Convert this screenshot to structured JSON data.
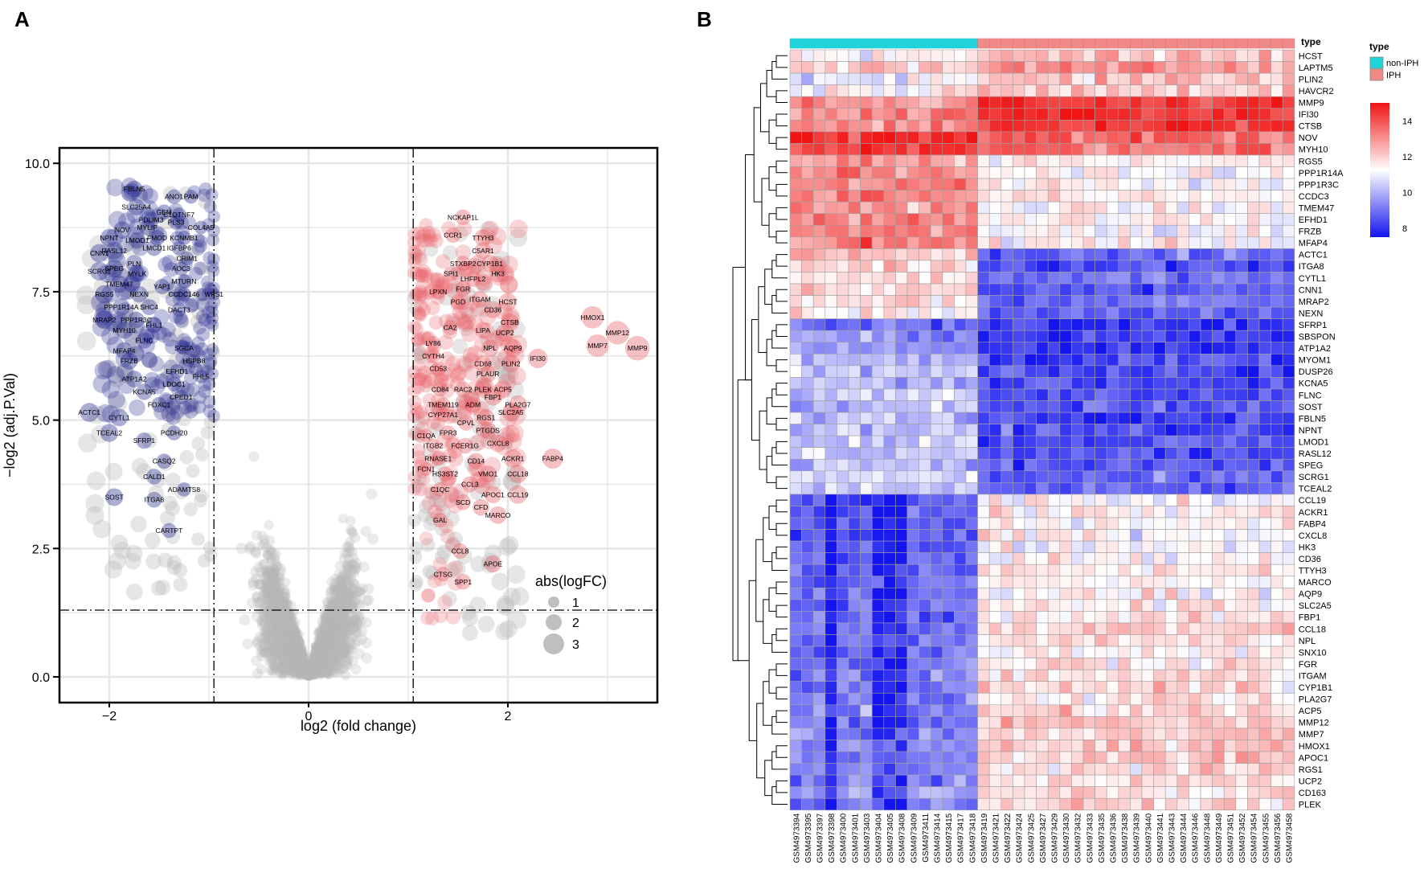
{
  "colors": {
    "up": "#e8646a",
    "down": "#2e3192",
    "ns": "#b8b8b8",
    "non_iph": "#1fd3d9",
    "iph": "#f08a88",
    "heat_low": "#1414f0",
    "heat_mid": "#ffffff",
    "heat_high": "#f01414",
    "grid": "#e6e6e6",
    "cell_border": "#a0a0a0"
  },
  "panel_labels": {
    "a": "A",
    "b": "B"
  },
  "chart_data": [
    {
      "type": "scatter",
      "subtype": "volcano",
      "title": "",
      "xlabel": "log2 (fold change)",
      "ylabel": "−log2 (adj.P.Val)",
      "xlim": [
        -2.5,
        3.5
      ],
      "ylim": [
        -0.5,
        10.3
      ],
      "x_ticks": [
        -2,
        0,
        2
      ],
      "x_tick_labels": [
        "−2",
        "0",
        "2"
      ],
      "y_ticks": [
        0,
        2.5,
        5,
        7.5,
        10
      ],
      "y_tick_labels": [
        "0.0",
        "2.5",
        "5.0",
        "7.5",
        "10.0"
      ],
      "fc_cutoff": [
        -0.95,
        1.05
      ],
      "p_cutoff": 1.3,
      "legend": {
        "title": "abs(logFC)",
        "sizes": [
          1,
          2,
          3
        ],
        "labels": [
          "1",
          "2",
          "3"
        ],
        "position": "bottom-right"
      },
      "down_genes": [
        {
          "name": "FBLN5",
          "x": -1.75,
          "y": 9.5
        },
        {
          "name": "ANO1",
          "x": -1.35,
          "y": 9.35
        },
        {
          "name": "PAM",
          "x": -1.18,
          "y": 9.35
        },
        {
          "name": "SLC25A4",
          "x": -1.73,
          "y": 9.15
        },
        {
          "name": "GEM",
          "x": -1.45,
          "y": 9.05
        },
        {
          "name": "C1QTNF7",
          "x": -1.3,
          "y": 9.0
        },
        {
          "name": "PDLIM3",
          "x": -1.58,
          "y": 8.9
        },
        {
          "name": "PLS3",
          "x": -1.33,
          "y": 8.85
        },
        {
          "name": "NOV",
          "x": -1.87,
          "y": 8.7
        },
        {
          "name": "MYLIP",
          "x": -1.62,
          "y": 8.75
        },
        {
          "name": "COL4A5",
          "x": -1.08,
          "y": 8.75
        },
        {
          "name": "NPNT",
          "x": -2.0,
          "y": 8.55
        },
        {
          "name": "LMOD1",
          "x": -1.72,
          "y": 8.5
        },
        {
          "name": "FMOD",
          "x": -1.52,
          "y": 8.55
        },
        {
          "name": "KCNMB1",
          "x": -1.25,
          "y": 8.55
        },
        {
          "name": "CNN1",
          "x": -2.1,
          "y": 8.25
        },
        {
          "name": "RASL12",
          "x": -1.95,
          "y": 8.3
        },
        {
          "name": "LMCD1",
          "x": -1.55,
          "y": 8.35
        },
        {
          "name": "IGFBP6",
          "x": -1.3,
          "y": 8.35
        },
        {
          "name": "PLN",
          "x": -1.75,
          "y": 8.05
        },
        {
          "name": "CRIM1",
          "x": -1.22,
          "y": 8.15
        },
        {
          "name": "SCRG1",
          "x": -2.1,
          "y": 7.9
        },
        {
          "name": "SPEG",
          "x": -1.95,
          "y": 7.95
        },
        {
          "name": "MYLK",
          "x": -1.72,
          "y": 7.85
        },
        {
          "name": "AOC3",
          "x": -1.28,
          "y": 7.95
        },
        {
          "name": "TMEM47",
          "x": -1.9,
          "y": 7.65
        },
        {
          "name": "YAP1",
          "x": -1.47,
          "y": 7.6
        },
        {
          "name": "MTURN",
          "x": -1.25,
          "y": 7.7
        },
        {
          "name": "RGS5",
          "x": -2.05,
          "y": 7.45
        },
        {
          "name": "NEXN",
          "x": -1.7,
          "y": 7.45
        },
        {
          "name": "CCDC146",
          "x": -1.25,
          "y": 7.45
        },
        {
          "name": "WFS1",
          "x": -0.95,
          "y": 7.45
        },
        {
          "name": "PPP1R14A",
          "x": -1.88,
          "y": 7.2
        },
        {
          "name": "SHC4",
          "x": -1.6,
          "y": 7.2
        },
        {
          "name": "DACT3",
          "x": -1.3,
          "y": 7.15
        },
        {
          "name": "MRAP2",
          "x": -2.05,
          "y": 6.95
        },
        {
          "name": "PPP1R3C",
          "x": -1.73,
          "y": 6.95
        },
        {
          "name": "MYH10",
          "x": -1.85,
          "y": 6.75
        },
        {
          "name": "FHL1",
          "x": -1.55,
          "y": 6.85
        },
        {
          "name": "FLNC",
          "x": -1.65,
          "y": 6.55
        },
        {
          "name": "MFAP4",
          "x": -1.85,
          "y": 6.35
        },
        {
          "name": "SGCA",
          "x": -1.25,
          "y": 6.4
        },
        {
          "name": "FRZB",
          "x": -1.8,
          "y": 6.15
        },
        {
          "name": "HSPB8",
          "x": -1.15,
          "y": 6.15
        },
        {
          "name": "EFHD1",
          "x": -1.32,
          "y": 5.95
        },
        {
          "name": "ATP1A2",
          "x": -1.75,
          "y": 5.8
        },
        {
          "name": "FHL5",
          "x": -1.08,
          "y": 5.85
        },
        {
          "name": "LDOC1",
          "x": -1.35,
          "y": 5.7
        },
        {
          "name": "KCNA5",
          "x": -1.65,
          "y": 5.55
        },
        {
          "name": "CPED1",
          "x": -1.28,
          "y": 5.45
        },
        {
          "name": "FOXC1",
          "x": -1.5,
          "y": 5.3
        },
        {
          "name": "ACTC1",
          "x": -2.2,
          "y": 5.15
        },
        {
          "name": "CYTL1",
          "x": -1.9,
          "y": 5.05
        },
        {
          "name": "TCEAL2",
          "x": -2.0,
          "y": 4.75
        },
        {
          "name": "PCDH20",
          "x": -1.35,
          "y": 4.75
        },
        {
          "name": "SFRP1",
          "x": -1.65,
          "y": 4.6
        },
        {
          "name": "CASQ2",
          "x": -1.45,
          "y": 4.2
        },
        {
          "name": "CALD1",
          "x": -1.55,
          "y": 3.9
        },
        {
          "name": "ADAMTS8",
          "x": -1.25,
          "y": 3.65
        },
        {
          "name": "SOST",
          "x": -1.95,
          "y": 3.5
        },
        {
          "name": "ITGA8",
          "x": -1.55,
          "y": 3.45
        },
        {
          "name": "CARTPT",
          "x": -1.4,
          "y": 2.85
        }
      ],
      "up_genes": [
        {
          "name": "NCKAP1L",
          "x": 1.55,
          "y": 8.95
        },
        {
          "name": "CCR1",
          "x": 1.45,
          "y": 8.6
        },
        {
          "name": "TTYH3",
          "x": 1.75,
          "y": 8.55
        },
        {
          "name": "C5AR1",
          "x": 1.75,
          "y": 8.3
        },
        {
          "name": "STXBP2",
          "x": 1.55,
          "y": 8.05
        },
        {
          "name": "CYP1B1",
          "x": 1.82,
          "y": 8.05
        },
        {
          "name": "SPI1",
          "x": 1.43,
          "y": 7.85
        },
        {
          "name": "HK3",
          "x": 1.9,
          "y": 7.85
        },
        {
          "name": "LHFPL2",
          "x": 1.65,
          "y": 7.75
        },
        {
          "name": "LPXN",
          "x": 1.3,
          "y": 7.5
        },
        {
          "name": "FGR",
          "x": 1.55,
          "y": 7.55
        },
        {
          "name": "PGD",
          "x": 1.5,
          "y": 7.3
        },
        {
          "name": "ITGAM",
          "x": 1.72,
          "y": 7.35
        },
        {
          "name": "HCST",
          "x": 2.0,
          "y": 7.3
        },
        {
          "name": "CD36",
          "x": 1.85,
          "y": 7.15
        },
        {
          "name": "CTSB",
          "x": 2.02,
          "y": 6.9
        },
        {
          "name": "CA2",
          "x": 1.42,
          "y": 6.8
        },
        {
          "name": "LIPA",
          "x": 1.75,
          "y": 6.75
        },
        {
          "name": "UCP2",
          "x": 1.97,
          "y": 6.7
        },
        {
          "name": "LY86",
          "x": 1.25,
          "y": 6.5
        },
        {
          "name": "NPL",
          "x": 1.82,
          "y": 6.4
        },
        {
          "name": "AQP9",
          "x": 2.05,
          "y": 6.4
        },
        {
          "name": "CYTH4",
          "x": 1.25,
          "y": 6.25
        },
        {
          "name": "CD68",
          "x": 1.75,
          "y": 6.1
        },
        {
          "name": "PLIN2",
          "x": 2.03,
          "y": 6.1
        },
        {
          "name": "IFI30",
          "x": 2.3,
          "y": 6.2
        },
        {
          "name": "CD53",
          "x": 1.3,
          "y": 6.0
        },
        {
          "name": "PLAUR",
          "x": 1.8,
          "y": 5.9
        },
        {
          "name": "HMOX1",
          "x": 2.85,
          "y": 7.0
        },
        {
          "name": "MMP12",
          "x": 3.1,
          "y": 6.7
        },
        {
          "name": "MMP7",
          "x": 2.9,
          "y": 6.45
        },
        {
          "name": "MMP9",
          "x": 3.3,
          "y": 6.4
        },
        {
          "name": "CD84",
          "x": 1.32,
          "y": 5.6
        },
        {
          "name": "RAC2",
          "x": 1.55,
          "y": 5.6
        },
        {
          "name": "PLEK",
          "x": 1.75,
          "y": 5.6
        },
        {
          "name": "ACP5",
          "x": 1.95,
          "y": 5.6
        },
        {
          "name": "FBP1",
          "x": 1.85,
          "y": 5.45
        },
        {
          "name": "ADM",
          "x": 1.65,
          "y": 5.3
        },
        {
          "name": "PLA2G7",
          "x": 2.1,
          "y": 5.3
        },
        {
          "name": "TMEM119",
          "x": 1.35,
          "y": 5.3
        },
        {
          "name": "SLC2A5",
          "x": 2.03,
          "y": 5.15
        },
        {
          "name": "CYP27A1",
          "x": 1.35,
          "y": 5.1
        },
        {
          "name": "RGS1",
          "x": 1.78,
          "y": 5.05
        },
        {
          "name": "CPVL",
          "x": 1.58,
          "y": 4.95
        },
        {
          "name": "PTGDS",
          "x": 1.8,
          "y": 4.8
        },
        {
          "name": "C1QA",
          "x": 1.18,
          "y": 4.7
        },
        {
          "name": "FPR3",
          "x": 1.4,
          "y": 4.75
        },
        {
          "name": "ITGB2",
          "x": 1.25,
          "y": 4.5
        },
        {
          "name": "FCER1G",
          "x": 1.57,
          "y": 4.5
        },
        {
          "name": "CXCL8",
          "x": 1.9,
          "y": 4.55
        },
        {
          "name": "ACKR1",
          "x": 2.05,
          "y": 4.25
        },
        {
          "name": "FABP4",
          "x": 2.45,
          "y": 4.25
        },
        {
          "name": "RNASE1",
          "x": 1.3,
          "y": 4.25
        },
        {
          "name": "CD14",
          "x": 1.68,
          "y": 4.2
        },
        {
          "name": "FCN1",
          "x": 1.18,
          "y": 4.05
        },
        {
          "name": "HS3ST2",
          "x": 1.37,
          "y": 3.95
        },
        {
          "name": "VMO1",
          "x": 1.8,
          "y": 3.95
        },
        {
          "name": "CCL18",
          "x": 2.1,
          "y": 3.95
        },
        {
          "name": "CCL3",
          "x": 1.62,
          "y": 3.75
        },
        {
          "name": "C1QC",
          "x": 1.32,
          "y": 3.65
        },
        {
          "name": "APOC1",
          "x": 1.85,
          "y": 3.55
        },
        {
          "name": "CCL19",
          "x": 2.1,
          "y": 3.55
        },
        {
          "name": "SCD",
          "x": 1.55,
          "y": 3.4
        },
        {
          "name": "CFD",
          "x": 1.73,
          "y": 3.3
        },
        {
          "name": "MARCO",
          "x": 1.9,
          "y": 3.15
        },
        {
          "name": "GAL",
          "x": 1.32,
          "y": 3.05
        },
        {
          "name": "CCL8",
          "x": 1.52,
          "y": 2.45
        },
        {
          "name": "APOE",
          "x": 1.85,
          "y": 2.2
        },
        {
          "name": "CTSG",
          "x": 1.35,
          "y": 2.0
        },
        {
          "name": "SPP1",
          "x": 1.55,
          "y": 1.85
        }
      ]
    },
    {
      "type": "heatmap",
      "title": "",
      "annotation_title": "type",
      "legend": {
        "type_title": "type",
        "type_entries": [
          "non-IPH",
          "IPH"
        ],
        "scale_ticks": [
          8,
          10,
          12,
          14
        ],
        "scale_tick_labels": [
          "8",
          "10",
          "12",
          "14"
        ],
        "range": [
          7.5,
          15.0
        ]
      },
      "group_split": 16,
      "samples": [
        "GSM4973394",
        "GSM4973395",
        "GSM4973397",
        "GSM4973398",
        "GSM4973400",
        "GSM4973401",
        "GSM4973403",
        "GSM4973404",
        "GSM4973405",
        "GSM4973408",
        "GSM4973409",
        "GSM4973411",
        "GSM4973414",
        "GSM4973415",
        "GSM4973417",
        "GSM4973418",
        "GSM4973419",
        "GSM4973421",
        "GSM4973422",
        "GSM4973424",
        "GSM4973425",
        "GSM4973427",
        "GSM4973429",
        "GSM4973430",
        "GSM4973432",
        "GSM4973433",
        "GSM4973435",
        "GSM4973436",
        "GSM4973438",
        "GSM4973439",
        "GSM4973440",
        "GSM4973441",
        "GSM4973443",
        "GSM4973444",
        "GSM4973446",
        "GSM4973448",
        "GSM4973449",
        "GSM4973451",
        "GSM4973452",
        "GSM4973454",
        "GSM4973455",
        "GSM4973456",
        "GSM4973458"
      ],
      "genes": [
        "HCST",
        "LAPTM5",
        "PLIN2",
        "HAVCR2",
        "MMP9",
        "IFI30",
        "CTSB",
        "NOV",
        "MYH10",
        "RGS5",
        "PPP1R14A",
        "PPP1R3C",
        "CCDC3",
        "TMEM47",
        "EFHD1",
        "FRZB",
        "MFAP4",
        "ACTC1",
        "ITGA8",
        "CYTL1",
        "CNN1",
        "MRAP2",
        "NEXN",
        "SFRP1",
        "SBSPON",
        "ATP1A2",
        "MYOM1",
        "DUSP26",
        "KCNA5",
        "FLNC",
        "SOST",
        "FBLN5",
        "NPNT",
        "LMOD1",
        "RASL12",
        "SPEG",
        "SCRG1",
        "TCEAL2",
        "CCL19",
        "ACKR1",
        "FABP4",
        "CXCL8",
        "HK3",
        "CD36",
        "TTYH3",
        "MARCO",
        "AQP9",
        "SLC2A5",
        "FBP1",
        "CCL18",
        "NPL",
        "SNX10",
        "FGR",
        "ITGAM",
        "CYP1B1",
        "PLA2G7",
        "ACP5",
        "MMP12",
        "MMP7",
        "HMOX1",
        "APOC1",
        "RGS1",
        "UCP2",
        "CD163",
        "PLEK"
      ],
      "row_base_non_iph": [
        11.5,
        12.0,
        11.0,
        11.5,
        13.0,
        13.0,
        13.0,
        14.5,
        14.5,
        12.8,
        13.2,
        13.0,
        13.2,
        13.0,
        13.2,
        13.3,
        13.3,
        12.2,
        12.0,
        11.8,
        11.8,
        11.8,
        11.5,
        9.0,
        9.5,
        9.6,
        10.0,
        10.2,
        10.2,
        10.3,
        10.2,
        10.3,
        10.3,
        10.5,
        10.4,
        10.4,
        10.6,
        10.4,
        8.4,
        8.8,
        8.6,
        8.6,
        8.7,
        8.7,
        8.9,
        9.0,
        8.8,
        8.9,
        8.9,
        9.2,
        9.1,
        9.0,
        9.1,
        9.1,
        9.1,
        9.2,
        9.2,
        8.9,
        9.3,
        9.6,
        9.4,
        9.5,
        9.2,
        9.6,
        9.2
      ],
      "row_base_iph": [
        12.3,
        12.8,
        12.2,
        12.3,
        14.5,
        14.5,
        14.4,
        13.6,
        13.6,
        11.5,
        11.5,
        11.4,
        11.4,
        11.3,
        11.4,
        11.3,
        11.4,
        8.8,
        8.5,
        9.0,
        8.6,
        8.9,
        8.7,
        8.0,
        8.1,
        8.2,
        8.3,
        8.3,
        8.4,
        8.4,
        8.5,
        8.4,
        8.4,
        8.5,
        8.4,
        8.5,
        8.6,
        8.6,
        11.2,
        11.5,
        11.3,
        11.4,
        11.3,
        11.3,
        11.6,
        11.4,
        11.5,
        11.5,
        11.6,
        12.0,
        11.7,
        11.6,
        11.8,
        11.7,
        11.8,
        11.7,
        11.9,
        12.2,
        12.1,
        12.2,
        12.1,
        11.8,
        11.9,
        11.8,
        11.9
      ]
    }
  ]
}
